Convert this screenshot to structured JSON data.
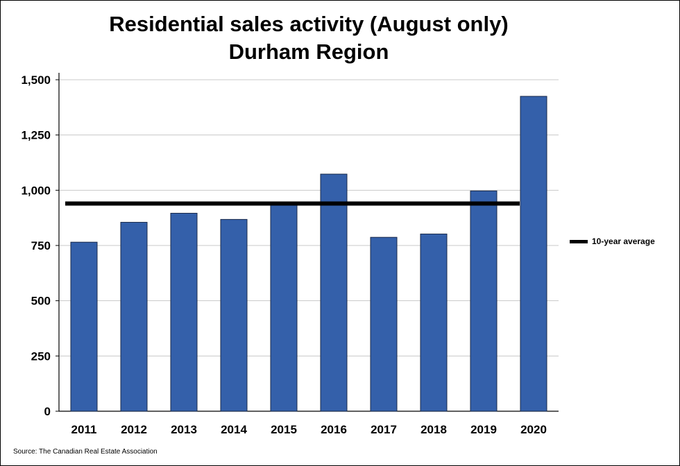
{
  "chart_data": {
    "type": "bar",
    "title": "Residential sales activity (August only)",
    "subtitle": "Durham Region",
    "categories": [
      "2011",
      "2012",
      "2013",
      "2014",
      "2015",
      "2016",
      "2017",
      "2018",
      "2019",
      "2020"
    ],
    "series": [
      {
        "values": [
          765,
          855,
          896,
          868,
          935,
          1073,
          787,
          802,
          997,
          1425
        ],
        "color": "#3460aa"
      }
    ],
    "reference_line": {
      "name": "10-year average",
      "value": 940,
      "color": "#000000"
    },
    "yticks": [
      "0",
      "250",
      "500",
      "750",
      "1,000",
      "1,250",
      "1,500"
    ],
    "ytick_values": [
      0,
      250,
      500,
      750,
      1000,
      1250,
      1500
    ],
    "ylim": [
      0,
      1500
    ],
    "xlabel": "",
    "ylabel": "",
    "grid": true,
    "legend_position": "right",
    "source": "Source: The Canadian Real Estate Association"
  }
}
